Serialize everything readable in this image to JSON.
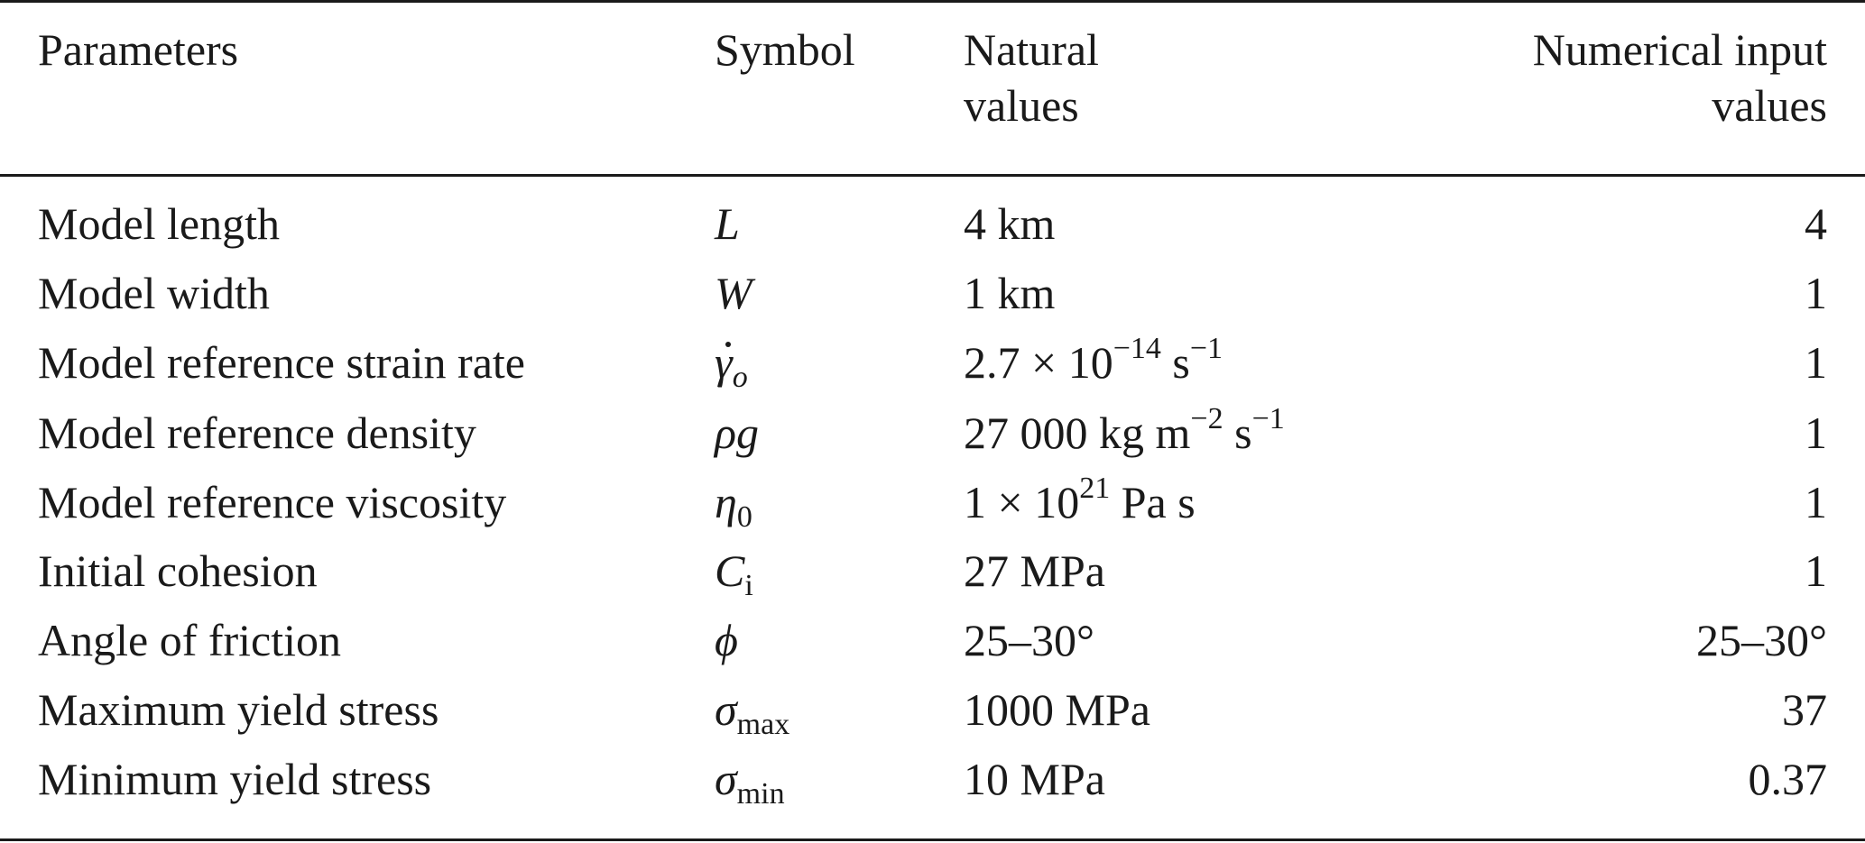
{
  "headers": {
    "parameters": "Parameters",
    "symbol": "Symbol",
    "natural_line1": "Natural",
    "natural_line2": "values",
    "numerical_line1": "Numerical input",
    "numerical_line2": "values"
  },
  "rows": [
    {
      "parameter": "Model length",
      "symbol_base": "L",
      "symbol_sub": "",
      "natural_base": "4 km",
      "natural_sup1": "",
      "natural_mid": "",
      "natural_sup2": "",
      "numerical": "4"
    },
    {
      "parameter": "Model width",
      "symbol_base": "W",
      "symbol_sub": "",
      "natural_base": "1 km",
      "natural_sup1": "",
      "natural_mid": "",
      "natural_sup2": "",
      "numerical": "1"
    },
    {
      "parameter": "Model reference strain rate",
      "symbol_base": "γ",
      "symbol_sub": "o",
      "natural_base": "2.7 × 10",
      "natural_sup1": "−14",
      "natural_mid": " s",
      "natural_sup2": "−1",
      "numerical": "1"
    },
    {
      "parameter": "Model reference density",
      "symbol_base": "ρg",
      "symbol_sub": "",
      "natural_base": "27 000 kg m",
      "natural_sup1": "−2",
      "natural_mid": " s",
      "natural_sup2": "−1",
      "numerical": "1"
    },
    {
      "parameter": "Model reference viscosity",
      "symbol_base": "η",
      "symbol_sub": "0",
      "natural_base": "1 × 10",
      "natural_sup1": "21",
      "natural_mid": " Pa s",
      "natural_sup2": "",
      "numerical": "1"
    },
    {
      "parameter": "Initial cohesion",
      "symbol_base": "C",
      "symbol_sub": "i",
      "natural_base": "27 MPa",
      "natural_sup1": "",
      "natural_mid": "",
      "natural_sup2": "",
      "numerical": "1"
    },
    {
      "parameter": "Angle of friction",
      "symbol_base": "ϕ",
      "symbol_sub": "",
      "natural_base": "25–30°",
      "natural_sup1": "",
      "natural_mid": "",
      "natural_sup2": "",
      "numerical": "25–30°"
    },
    {
      "parameter": "Maximum yield stress",
      "symbol_base": "σ",
      "symbol_sub": "max",
      "natural_base": "1000 MPa",
      "natural_sup1": "",
      "natural_mid": "",
      "natural_sup2": "",
      "numerical": "37"
    },
    {
      "parameter": "Minimum yield stress",
      "symbol_base": "σ",
      "symbol_sub": "min",
      "natural_base": "10 MPa",
      "natural_sup1": "",
      "natural_mid": "",
      "natural_sup2": "",
      "numerical": "0.37"
    }
  ]
}
